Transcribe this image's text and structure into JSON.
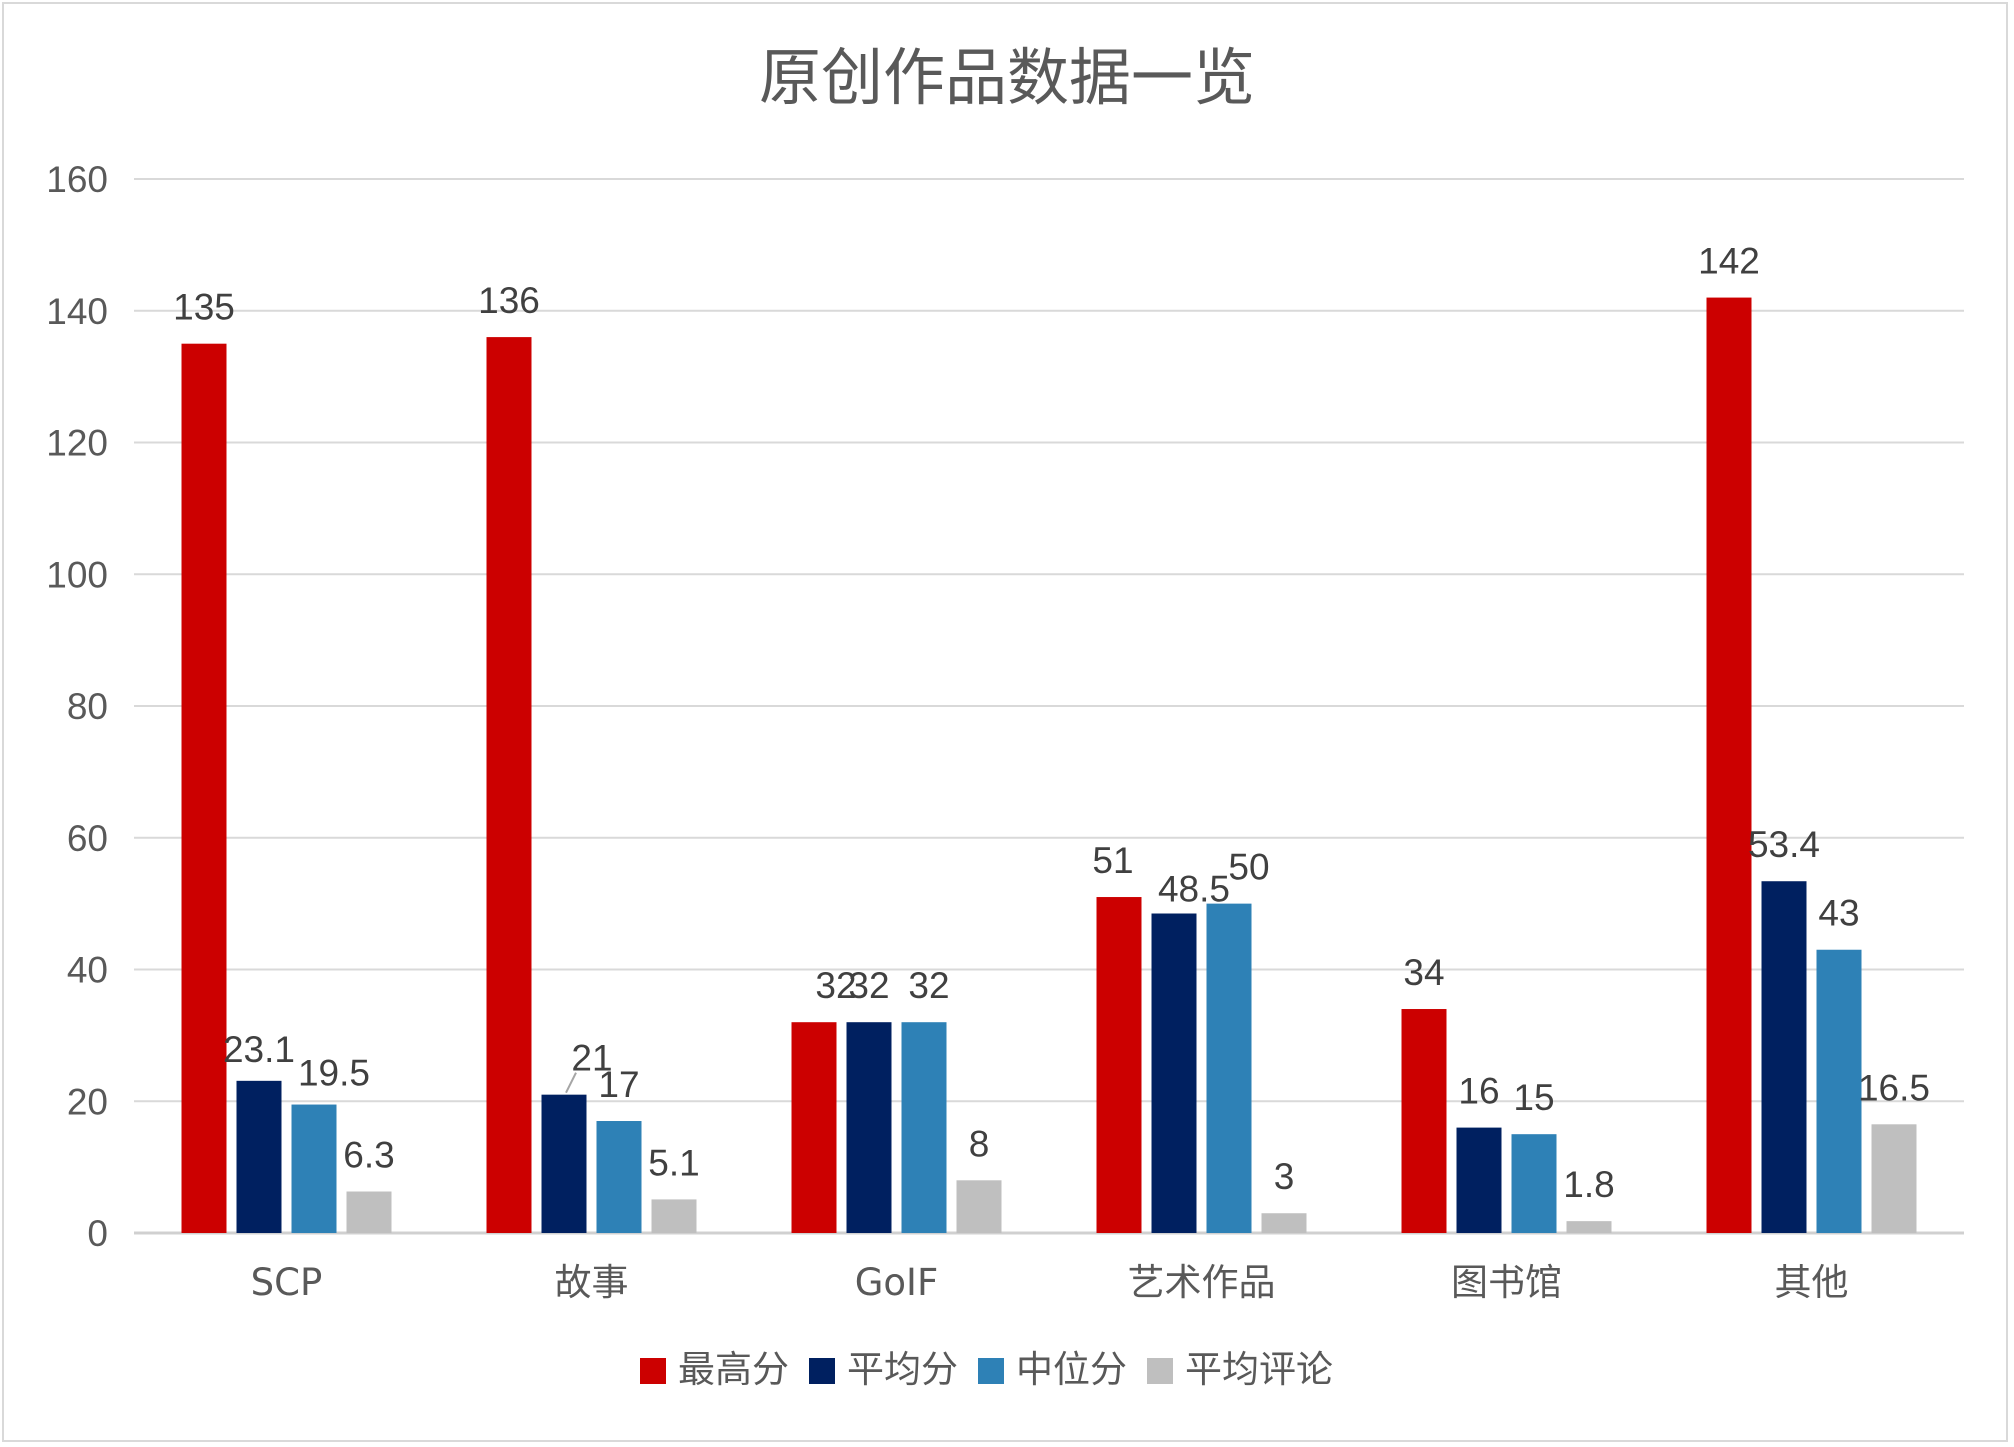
{
  "chart_data": {
    "type": "bar",
    "title": "原创作品数据一览",
    "xlabel": "",
    "ylabel": "",
    "ylim": [
      0,
      160
    ],
    "y_ticks": [
      0,
      20,
      40,
      60,
      80,
      100,
      120,
      140,
      160
    ],
    "grid": true,
    "legend_position": "bottom",
    "categories": [
      "SCP",
      "故事",
      "GoIF",
      "艺术作品",
      "图书馆",
      "其他"
    ],
    "series": [
      {
        "name": "最高分",
        "color": "#cc0000",
        "values": [
          135,
          136,
          32,
          51,
          34,
          142
        ],
        "labels": [
          "135",
          "136",
          "32",
          "51",
          "34",
          "142"
        ]
      },
      {
        "name": "平均分",
        "color": "#002060",
        "values": [
          23.1,
          21,
          32,
          48.5,
          16,
          53.4
        ],
        "labels": [
          "23.1",
          "21",
          "32",
          "48.5",
          "16",
          "53.4"
        ]
      },
      {
        "name": "中位分",
        "color": "#2e81b6",
        "values": [
          19.5,
          17,
          32,
          50,
          15,
          43
        ],
        "labels": [
          "19.5",
          "17",
          "32",
          "50",
          "15",
          "43"
        ]
      },
      {
        "name": "平均评论",
        "color": "#bfbfbf",
        "values": [
          6.3,
          5.1,
          8,
          3,
          1.8,
          16.5
        ],
        "labels": [
          "6.3",
          "5.1",
          "8",
          "3",
          "1.8",
          "16.5"
        ]
      }
    ]
  }
}
